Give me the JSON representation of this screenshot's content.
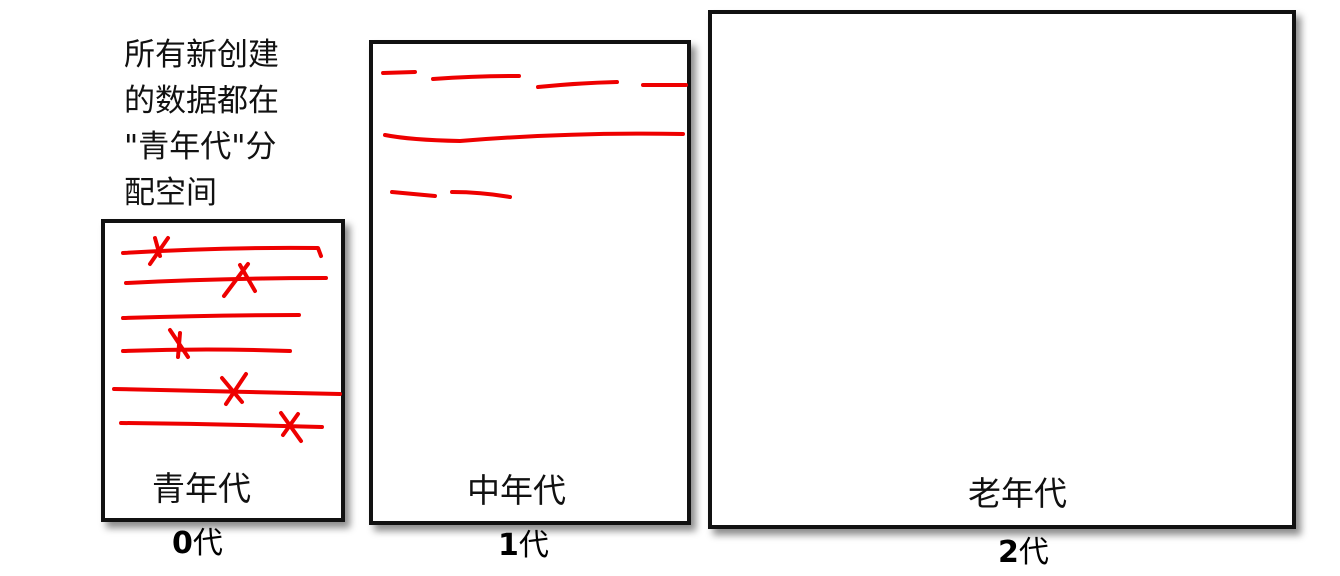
{
  "caption": {
    "lines": [
      "所有新创建",
      "的数据都在",
      "\"青年代\"分",
      "配空间"
    ]
  },
  "generations": [
    {
      "name": "青年代",
      "gen_number": "0",
      "gen_suffix": "代"
    },
    {
      "name": "中年代",
      "gen_number": "1",
      "gen_suffix": "代"
    },
    {
      "name": "老年代",
      "gen_number": "2",
      "gen_suffix": "代"
    }
  ],
  "colors": {
    "box_border": "#111111",
    "stroke": "#ee0000"
  }
}
